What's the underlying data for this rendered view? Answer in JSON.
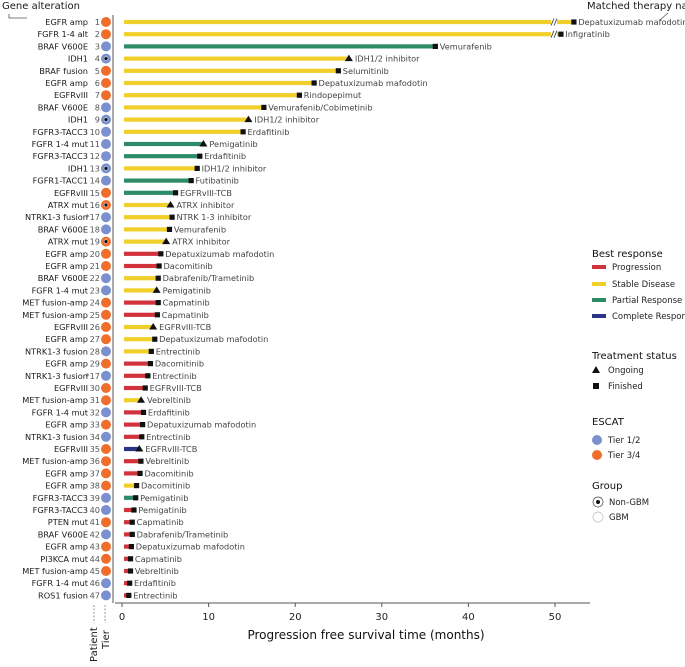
{
  "header": {
    "gene_alteration": "Gene alteration",
    "matched_therapy": "Matched therapy name"
  },
  "bottom_labels": {
    "patient": "Patient",
    "tier": "Tier"
  },
  "colors": {
    "progression": "#d2323c",
    "stable": "#f0cf2a",
    "partial": "#2e8b68",
    "complete": "#2b3585",
    "tier12": "#7b90cf",
    "tier34": "#ef6e2c"
  },
  "chart_data": {
    "type": "bar",
    "orientation": "horizontal",
    "title": "",
    "xlabel": "Progression free survival time (months)",
    "ylabel": "",
    "xlim": [
      0,
      52
    ],
    "xticks": [
      0,
      10,
      20,
      30,
      40,
      50
    ],
    "axis_break_at": 50,
    "rows": [
      {
        "gene": "EGFR amp",
        "patient": "1",
        "tier": "3/4",
        "non_gbm": false,
        "pfs": 52.0,
        "response": "stable",
        "status": "finished",
        "therapy": "Depatuxizumab mafodotin"
      },
      {
        "gene": "FGFR 1-4 alt",
        "patient": "2",
        "tier": "3/4",
        "non_gbm": false,
        "pfs": 50.5,
        "response": "stable",
        "status": "finished",
        "therapy": "Infigratinib"
      },
      {
        "gene": "BRAF V600E",
        "patient": "3",
        "tier": "1/2",
        "non_gbm": false,
        "pfs": 36.0,
        "response": "partial",
        "status": "finished",
        "therapy": "Vemurafenib"
      },
      {
        "gene": "IDH1",
        "patient": "4",
        "tier": "1/2",
        "non_gbm": true,
        "pfs": 26.2,
        "response": "stable",
        "status": "ongoing",
        "therapy": "IDH1/2 inhibitor"
      },
      {
        "gene": "BRAF fusion",
        "patient": "5",
        "tier": "3/4",
        "non_gbm": false,
        "pfs": 24.8,
        "response": "stable",
        "status": "finished",
        "therapy": "Selumitinib"
      },
      {
        "gene": "EGFR amp",
        "patient": "6",
        "tier": "3/4",
        "non_gbm": false,
        "pfs": 22.0,
        "response": "stable",
        "status": "finished",
        "therapy": "Depatuxizumab mafodotin"
      },
      {
        "gene": "EGFRvIII",
        "patient": "7",
        "tier": "3/4",
        "non_gbm": false,
        "pfs": 20.3,
        "response": "stable",
        "status": "finished",
        "therapy": "Rindopepimut"
      },
      {
        "gene": "BRAF V600E",
        "patient": "8",
        "tier": "1/2",
        "non_gbm": false,
        "pfs": 16.2,
        "response": "stable",
        "status": "finished",
        "therapy": "Vemurafenib/Cobimetinib"
      },
      {
        "gene": "IDH1",
        "patient": "9",
        "tier": "1/2",
        "non_gbm": true,
        "pfs": 14.6,
        "response": "stable",
        "status": "ongoing",
        "therapy": "IDH1/2 inhibitor"
      },
      {
        "gene": "FGFR3-TACC3",
        "patient": "10",
        "tier": "1/2",
        "non_gbm": false,
        "pfs": 13.8,
        "response": "stable",
        "status": "finished",
        "therapy": "Erdafitinib"
      },
      {
        "gene": "FGFR 1-4 mut",
        "patient": "11",
        "tier": "1/2",
        "non_gbm": false,
        "pfs": 9.4,
        "response": "partial",
        "status": "ongoing",
        "therapy": "Pemigatinib"
      },
      {
        "gene": "FGFR3-TACC3",
        "patient": "12",
        "tier": "1/2",
        "non_gbm": false,
        "pfs": 8.8,
        "response": "partial",
        "status": "finished",
        "therapy": "Erdafitinib"
      },
      {
        "gene": "IDH1",
        "patient": "13",
        "tier": "1/2",
        "non_gbm": true,
        "pfs": 8.5,
        "response": "stable",
        "status": "finished",
        "therapy": "IDH1/2 inhibitor"
      },
      {
        "gene": "FGFR1-TACC1",
        "patient": "14",
        "tier": "1/2",
        "non_gbm": false,
        "pfs": 7.8,
        "response": "partial",
        "status": "finished",
        "therapy": "Futibatinib"
      },
      {
        "gene": "EGFRvIII",
        "patient": "15",
        "tier": "3/4",
        "non_gbm": false,
        "pfs": 6.0,
        "response": "partial",
        "status": "finished",
        "therapy": "EGFRvIII-TCB"
      },
      {
        "gene": "ATRX mut",
        "patient": "16",
        "tier": "3/4",
        "non_gbm": true,
        "pfs": 5.6,
        "response": "stable",
        "status": "ongoing",
        "therapy": "ATRX inhibitor"
      },
      {
        "gene": "NTRK1-3 fusion",
        "patient": "*17",
        "tier": "1/2",
        "non_gbm": false,
        "pfs": 5.6,
        "response": "stable",
        "status": "finished",
        "therapy": "NTRK 1-3 inhibitor"
      },
      {
        "gene": "BRAF V600E",
        "patient": "18",
        "tier": "1/2",
        "non_gbm": false,
        "pfs": 5.3,
        "response": "stable",
        "status": "finished",
        "therapy": "Vemurafenib"
      },
      {
        "gene": "ATRX mut",
        "patient": "19",
        "tier": "3/4",
        "non_gbm": true,
        "pfs": 5.1,
        "response": "stable",
        "status": "ongoing",
        "therapy": "ATRX inhibitor"
      },
      {
        "gene": "EGFR amp",
        "patient": "20",
        "tier": "3/4",
        "non_gbm": false,
        "pfs": 4.3,
        "response": "progression",
        "status": "finished",
        "therapy": "Depatuxizumab mafodotin"
      },
      {
        "gene": "EGFR amp",
        "patient": "21",
        "tier": "3/4",
        "non_gbm": false,
        "pfs": 4.1,
        "response": "progression",
        "status": "finished",
        "therapy": "Dacomitinib"
      },
      {
        "gene": "BRAF V600E",
        "patient": "22",
        "tier": "1/2",
        "non_gbm": false,
        "pfs": 4.0,
        "response": "stable",
        "status": "finished",
        "therapy": "Dabrafenib/Trametinib"
      },
      {
        "gene": "FGFR 1-4 mut",
        "patient": "23",
        "tier": "1/2",
        "non_gbm": false,
        "pfs": 4.0,
        "response": "stable",
        "status": "ongoing",
        "therapy": "Pemigatinib"
      },
      {
        "gene": "MET fusion-amp",
        "patient": "24",
        "tier": "3/4",
        "non_gbm": false,
        "pfs": 4.0,
        "response": "progression",
        "status": "finished",
        "therapy": "Capmatinib"
      },
      {
        "gene": "MET fusion-amp",
        "patient": "25",
        "tier": "3/4",
        "non_gbm": false,
        "pfs": 3.9,
        "response": "progression",
        "status": "finished",
        "therapy": "Capmatinib"
      },
      {
        "gene": "EGFRvIII",
        "patient": "26",
        "tier": "3/4",
        "non_gbm": false,
        "pfs": 3.6,
        "response": "stable",
        "status": "ongoing",
        "therapy": "EGFRvIII-TCB"
      },
      {
        "gene": "EGFR amp",
        "patient": "27",
        "tier": "3/4",
        "non_gbm": false,
        "pfs": 3.6,
        "response": "stable",
        "status": "finished",
        "therapy": "Depatuxizumab mafodotin"
      },
      {
        "gene": "NTRK1-3 fusion",
        "patient": "28",
        "tier": "1/2",
        "non_gbm": false,
        "pfs": 3.2,
        "response": "stable",
        "status": "finished",
        "therapy": "Entrectinib"
      },
      {
        "gene": "EGFR amp",
        "patient": "29",
        "tier": "3/4",
        "non_gbm": false,
        "pfs": 3.1,
        "response": "progression",
        "status": "finished",
        "therapy": "Dacomitinib"
      },
      {
        "gene": "NTRK1-3 fusion",
        "patient": "*17",
        "tier": "1/2",
        "non_gbm": false,
        "pfs": 2.8,
        "response": "progression",
        "status": "finished",
        "therapy": "Entrectinib"
      },
      {
        "gene": "EGFRvIII",
        "patient": "30",
        "tier": "3/4",
        "non_gbm": false,
        "pfs": 2.5,
        "response": "progression",
        "status": "finished",
        "therapy": "EGFRvIII-TCB"
      },
      {
        "gene": "MET fusion-amp",
        "patient": "31",
        "tier": "3/4",
        "non_gbm": false,
        "pfs": 2.2,
        "response": "stable",
        "status": "ongoing",
        "therapy": "Vebreltinib"
      },
      {
        "gene": "FGFR 1-4 mut",
        "patient": "32",
        "tier": "1/2",
        "non_gbm": false,
        "pfs": 2.3,
        "response": "progression",
        "status": "finished",
        "therapy": "Erdafitinib"
      },
      {
        "gene": "EGFR amp",
        "patient": "33",
        "tier": "3/4",
        "non_gbm": false,
        "pfs": 2.2,
        "response": "progression",
        "status": "finished",
        "therapy": "Depatuxizumab mafodotin"
      },
      {
        "gene": "NTRK1-3 fusion",
        "patient": "34",
        "tier": "1/2",
        "non_gbm": false,
        "pfs": 2.1,
        "response": "progression",
        "status": "finished",
        "therapy": "Entrectinib"
      },
      {
        "gene": "EGFRvIII",
        "patient": "35",
        "tier": "3/4",
        "non_gbm": false,
        "pfs": 2.0,
        "response": "complete",
        "status": "ongoing",
        "therapy": "EGFRvIII-TCB"
      },
      {
        "gene": "MET fusion-amp",
        "patient": "36",
        "tier": "3/4",
        "non_gbm": false,
        "pfs": 2.0,
        "response": "progression",
        "status": "finished",
        "therapy": "Vebreltinib"
      },
      {
        "gene": "EGFR amp",
        "patient": "37",
        "tier": "3/4",
        "non_gbm": false,
        "pfs": 1.9,
        "response": "progression",
        "status": "finished",
        "therapy": "Dacomitinib"
      },
      {
        "gene": "EGFR amp",
        "patient": "38",
        "tier": "3/4",
        "non_gbm": false,
        "pfs": 1.5,
        "response": "stable",
        "status": "finished",
        "therapy": "Dacomitinib"
      },
      {
        "gene": "FGFR3-TACC3",
        "patient": "39",
        "tier": "1/2",
        "non_gbm": false,
        "pfs": 1.4,
        "response": "partial",
        "status": "finished",
        "therapy": "Pemigatinib"
      },
      {
        "gene": "FGFR3-TACC3",
        "patient": "40",
        "tier": "1/2",
        "non_gbm": false,
        "pfs": 1.2,
        "response": "progression",
        "status": "finished",
        "therapy": "Pemigatinib"
      },
      {
        "gene": "PTEN mut",
        "patient": "41",
        "tier": "3/4",
        "non_gbm": false,
        "pfs": 1.0,
        "response": "progression",
        "status": "finished",
        "therapy": "Capmatinib"
      },
      {
        "gene": "BRAF V600E",
        "patient": "42",
        "tier": "1/2",
        "non_gbm": false,
        "pfs": 1.0,
        "response": "progression",
        "status": "finished",
        "therapy": "Dabrafenib/Trametinib"
      },
      {
        "gene": "EGFR amp",
        "patient": "43",
        "tier": "3/4",
        "non_gbm": false,
        "pfs": 0.9,
        "response": "progression",
        "status": "finished",
        "therapy": "Depatuxizumab mafodotin"
      },
      {
        "gene": "PI3KCA mut",
        "patient": "44",
        "tier": "3/4",
        "non_gbm": false,
        "pfs": 0.8,
        "response": "progression",
        "status": "finished",
        "therapy": "Capmatinib"
      },
      {
        "gene": "MET fusion-amp",
        "patient": "45",
        "tier": "3/4",
        "non_gbm": false,
        "pfs": 0.8,
        "response": "progression",
        "status": "finished",
        "therapy": "Vebreltinib"
      },
      {
        "gene": "FGFR 1-4 mut",
        "patient": "46",
        "tier": "1/2",
        "non_gbm": false,
        "pfs": 0.7,
        "response": "progression",
        "status": "finished",
        "therapy": "Erdafitinib"
      },
      {
        "gene": "ROS1 fusion",
        "patient": "47",
        "tier": "1/2",
        "non_gbm": false,
        "pfs": 0.6,
        "response": "progression",
        "status": "finished",
        "therapy": "Entrectinib"
      }
    ],
    "legend": {
      "best_response": {
        "title": "Best response",
        "items": [
          {
            "key": "progression",
            "label": "Progression"
          },
          {
            "key": "stable",
            "label": "Stable Disease"
          },
          {
            "key": "partial",
            "label": "Partial Response"
          },
          {
            "key": "complete",
            "label": "Complete Response"
          }
        ]
      },
      "treatment_status": {
        "title": "Treatment status",
        "items": [
          {
            "key": "ongoing",
            "label": "Ongoing"
          },
          {
            "key": "finished",
            "label": "Finished"
          }
        ]
      },
      "escat": {
        "title": "ESCAT",
        "items": [
          {
            "key": "tier12",
            "label": "Tier 1/2"
          },
          {
            "key": "tier34",
            "label": "Tier 3/4"
          }
        ]
      },
      "group": {
        "title": "Group",
        "items": [
          {
            "key": "non_gbm",
            "label": "Non-GBM"
          },
          {
            "key": "gbm",
            "label": "GBM"
          }
        ]
      }
    }
  }
}
